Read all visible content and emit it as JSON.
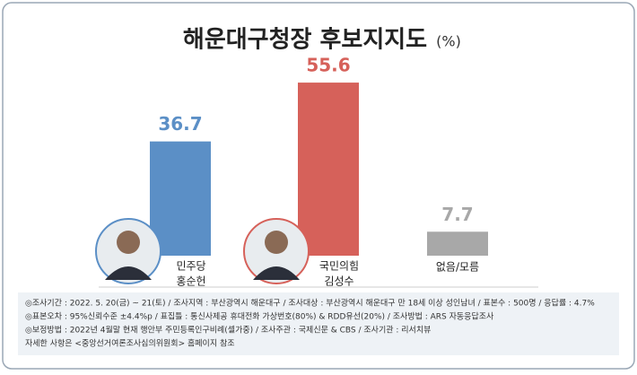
{
  "chart_data": {
    "type": "bar",
    "title": "해운대구청장 후보지지도",
    "unit": "(%)",
    "categories": [
      "홍순헌",
      "김성수",
      "없음/모름"
    ],
    "parties": [
      "민주당",
      "국민의힘",
      null
    ],
    "values": [
      36.7,
      55.6,
      7.7
    ],
    "colors": [
      "#5b8fc6",
      "#d6615a",
      "#a8a8a8"
    ],
    "notes": [
      "◎조사기간 : 2022. 5. 20(금) ~ 21(토) / 조사지역 : 부산광역시 해운대구 / 조사대상 : 부산광역시 해운대구 만 18세 이상 성인남녀 / 표본수 : 500명 / 응답률 : 4.7%",
      "◎표본오차 : 95%신뢰수준 ±4.4%p / 표집틀 : 통신사제공 휴대전화 가상번호(80%) & RDD유선(20%) / 조사방법 : ARS 자동응답조사",
      "◎보정방법 : 2022년 4월말 현재 행안부 주민등록인구비례(셀가중) / 조사주관 : 국제신문 & CBS / 조사기관 : 리서치뷰",
      "자세한 사항은 <중앙선거여론조사심의위원회> 홈페이지 참조"
    ]
  }
}
